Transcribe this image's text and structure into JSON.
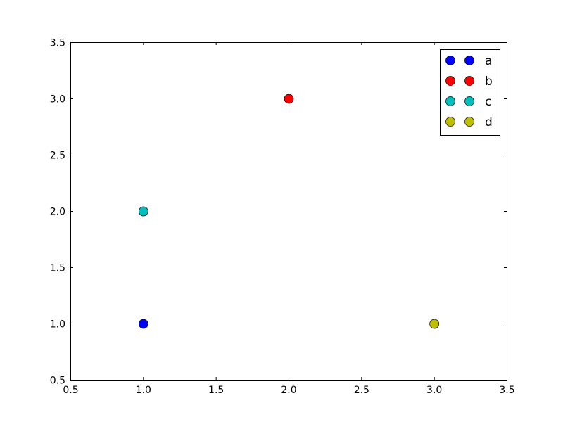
{
  "chart_data": {
    "type": "scatter",
    "title": "",
    "xlabel": "",
    "ylabel": "",
    "xlim": [
      0.5,
      3.5
    ],
    "ylim": [
      0.5,
      3.5
    ],
    "xticks": [
      "0.5",
      "1.0",
      "1.5",
      "2.0",
      "2.5",
      "3.0",
      "3.5"
    ],
    "yticks": [
      "0.5",
      "1.0",
      "1.5",
      "2.0",
      "2.5",
      "3.0",
      "3.5"
    ],
    "grid": false,
    "legend_position": "top-right",
    "series": [
      {
        "name": "a",
        "color": "#0000ff",
        "x": [
          1
        ],
        "y": [
          1
        ]
      },
      {
        "name": "b",
        "color": "#ff0000",
        "x": [
          2
        ],
        "y": [
          3
        ]
      },
      {
        "name": "c",
        "color": "#00bfbf",
        "x": [
          1
        ],
        "y": [
          2
        ]
      },
      {
        "name": "d",
        "color": "#bfbf00",
        "x": [
          3
        ],
        "y": [
          1
        ]
      }
    ]
  }
}
